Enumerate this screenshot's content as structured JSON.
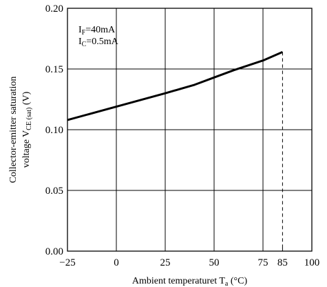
{
  "chart_data": {
    "type": "line",
    "xlabel": {
      "main": "Ambient temperaturet T",
      "sub": "a",
      "unit": " (°C)"
    },
    "ylabel": {
      "line1": "Collector-emitter saturation",
      "line2_main": "voltage V",
      "line2_sub": "CE (sat)",
      "line2_unit": " (V)"
    },
    "xlim": [
      -25,
      100
    ],
    "ylim": [
      0.0,
      0.2
    ],
    "x_ticks": [
      -25,
      0,
      25,
      50,
      75,
      85,
      100
    ],
    "x_tick_labels": [
      "−25",
      "0",
      "25",
      "50",
      "75",
      "85",
      "100"
    ],
    "y_ticks": [
      0.0,
      0.05,
      0.1,
      0.15,
      0.2
    ],
    "y_tick_labels": [
      "0.00",
      "0.05",
      "0.10",
      "0.15",
      "0.20"
    ],
    "x_gridlines": [
      0,
      25,
      50,
      75
    ],
    "y_gridlines": [
      0.05,
      0.1,
      0.15
    ],
    "grid": true,
    "series": [
      {
        "x": [
          -25,
          0,
          25,
          40,
          50,
          60,
          75,
          85
        ],
        "y": [
          0.108,
          0.119,
          0.13,
          0.137,
          0.143,
          0.149,
          0.157,
          0.164
        ],
        "style": "solid-thick"
      }
    ],
    "limit_line": {
      "x": 85,
      "style": "dashed"
    },
    "annotations": [
      {
        "main": "I",
        "sub": "F",
        "rest": "=40mA"
      },
      {
        "main": "I",
        "sub": "C",
        "rest": "=0.5mA"
      }
    ]
  }
}
